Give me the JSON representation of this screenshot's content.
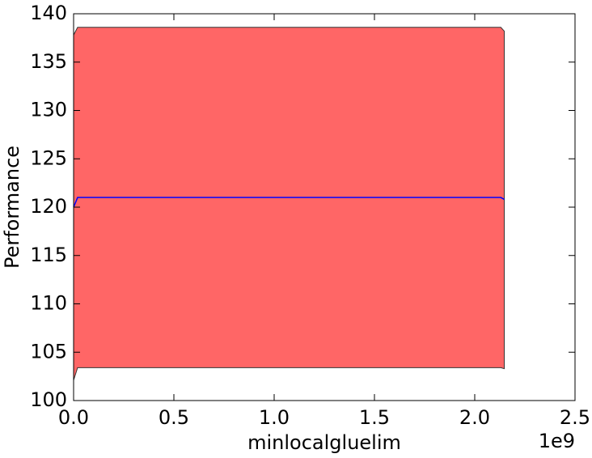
{
  "chart_data": {
    "type": "line",
    "xlabel": "minlocalgluelim",
    "ylabel": "Performance",
    "x_offset_label": "1e9",
    "x": [
      0,
      20000000,
      2130000000,
      2147483647
    ],
    "series": [
      {
        "color": "#0000ff",
        "values": [
          120.0,
          121.0,
          121.0,
          120.8
        ]
      }
    ],
    "band": {
      "color": "#ff6666",
      "edge_color": "#333333",
      "upper": [
        137.8,
        138.6,
        138.6,
        138.2
      ],
      "lower": [
        102.1,
        103.4,
        103.4,
        103.3
      ]
    },
    "xlim": [
      0,
      2500000000
    ],
    "ylim": [
      100,
      140
    ],
    "xticks": [
      {
        "value": 0,
        "label": "0.0"
      },
      {
        "value": 500000000,
        "label": "0.5"
      },
      {
        "value": 1000000000,
        "label": "1.0"
      },
      {
        "value": 1500000000,
        "label": "1.5"
      },
      {
        "value": 2000000000,
        "label": "2.0"
      },
      {
        "value": 2500000000,
        "label": "2.5"
      }
    ],
    "yticks": [
      100,
      105,
      110,
      115,
      120,
      125,
      130,
      135,
      140
    ],
    "grid": false
  }
}
